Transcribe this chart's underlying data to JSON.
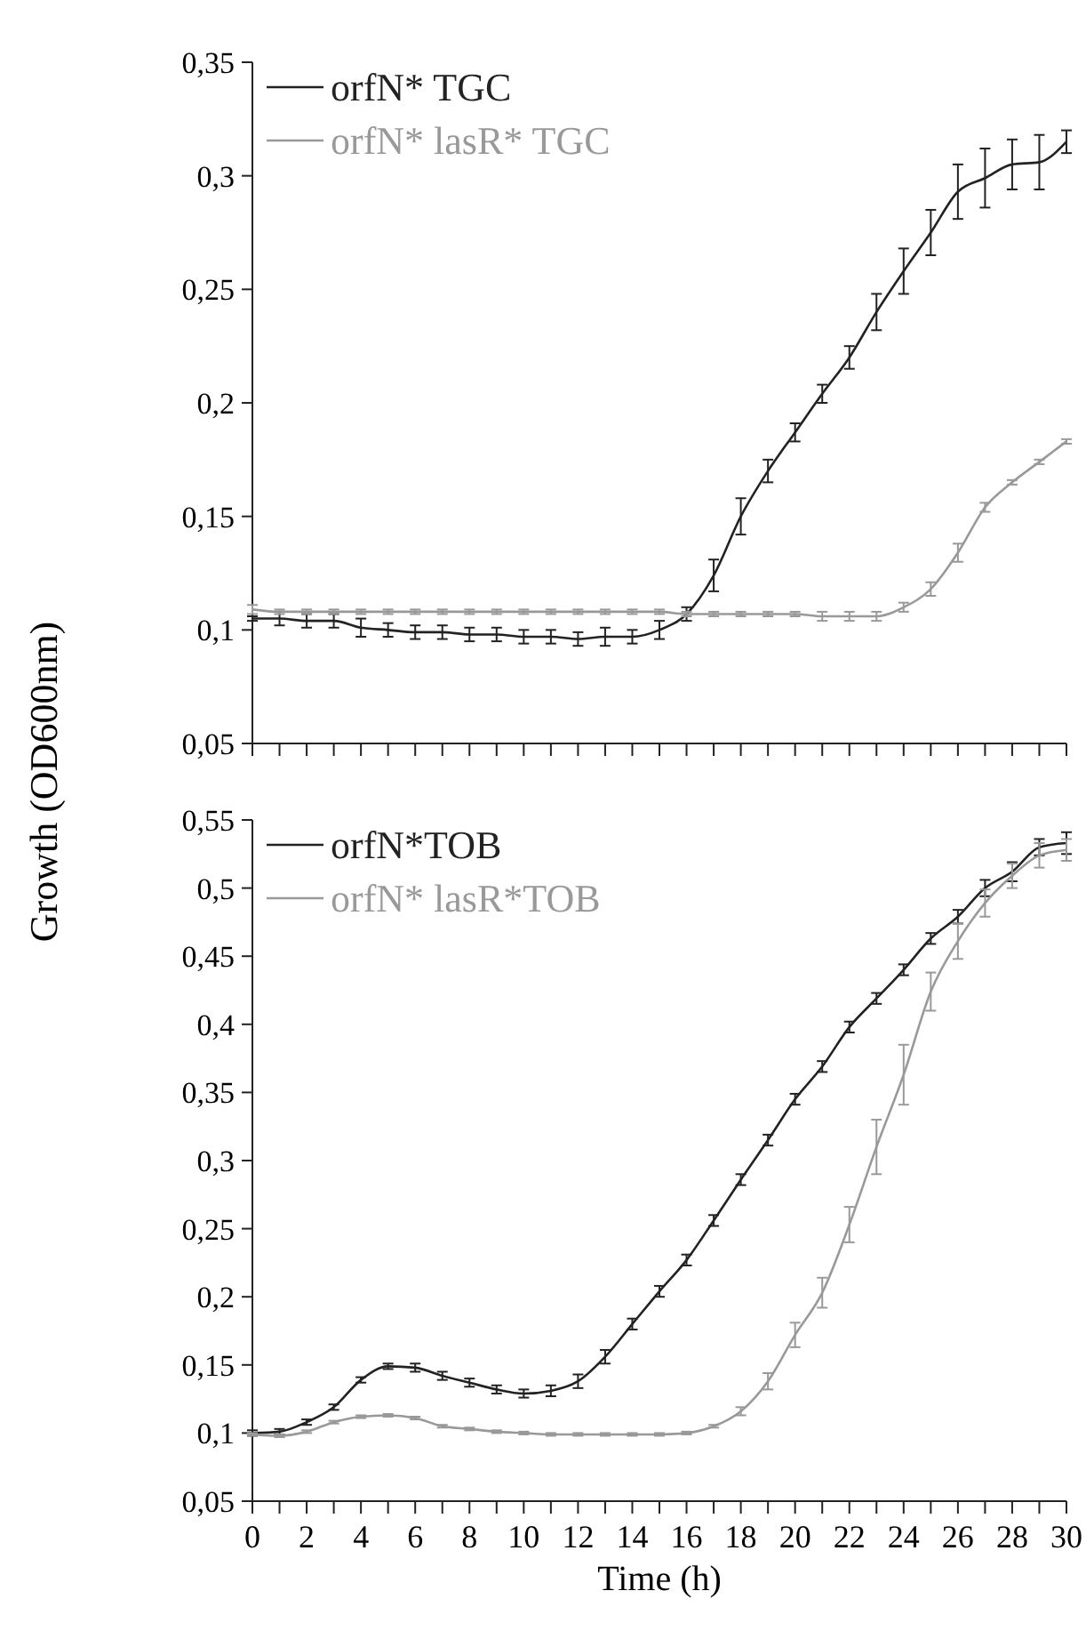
{
  "chart_data": [
    {
      "type": "line",
      "ylabel": "Growth (OD600nm)",
      "x": [
        0,
        1,
        2,
        3,
        4,
        5,
        6,
        7,
        8,
        9,
        10,
        11,
        12,
        13,
        14,
        15,
        16,
        17,
        18,
        19,
        20,
        21,
        22,
        23,
        24,
        25,
        26,
        27,
        28,
        29,
        30
      ],
      "xlim": [
        0,
        30
      ],
      "xticks": [
        {
          "value": 0,
          "label": null
        },
        {
          "value": 1,
          "label": null
        },
        {
          "value": 2,
          "label": null
        },
        {
          "value": 3,
          "label": null
        },
        {
          "value": 4,
          "label": null
        },
        {
          "value": 5,
          "label": null
        },
        {
          "value": 6,
          "label": null
        },
        {
          "value": 7,
          "label": null
        },
        {
          "value": 8,
          "label": null
        },
        {
          "value": 9,
          "label": null
        },
        {
          "value": 10,
          "label": null
        },
        {
          "value": 11,
          "label": null
        },
        {
          "value": 12,
          "label": null
        },
        {
          "value": 13,
          "label": null
        },
        {
          "value": 14,
          "label": null
        },
        {
          "value": 15,
          "label": null
        },
        {
          "value": 16,
          "label": null
        },
        {
          "value": 17,
          "label": null
        },
        {
          "value": 18,
          "label": null
        },
        {
          "value": 19,
          "label": null
        },
        {
          "value": 20,
          "label": null
        },
        {
          "value": 21,
          "label": null
        },
        {
          "value": 22,
          "label": null
        },
        {
          "value": 23,
          "label": null
        },
        {
          "value": 24,
          "label": null
        },
        {
          "value": 25,
          "label": null
        },
        {
          "value": 26,
          "label": null
        },
        {
          "value": 27,
          "label": null
        },
        {
          "value": 28,
          "label": null
        },
        {
          "value": 29,
          "label": null
        },
        {
          "value": 30,
          "label": null
        }
      ],
      "ylim": [
        0.05,
        0.35
      ],
      "yticks": [
        {
          "value": 0.05,
          "label": "0,05"
        },
        {
          "value": 0.1,
          "label": "0,1"
        },
        {
          "value": 0.15,
          "label": "0,15"
        },
        {
          "value": 0.2,
          "label": "0,2"
        },
        {
          "value": 0.25,
          "label": "0,25"
        },
        {
          "value": 0.3,
          "label": "0,3"
        },
        {
          "value": 0.35,
          "label": "0,35"
        }
      ],
      "tick_labels": "y",
      "legend": "top left",
      "marker": "none",
      "line_style": "solid",
      "grid": false,
      "series": [
        {
          "name": "orfN* TGC",
          "color": "#222222",
          "values": [
            0.105,
            0.105,
            0.104,
            0.104,
            0.101,
            0.1,
            0.099,
            0.099,
            0.098,
            0.098,
            0.097,
            0.097,
            0.096,
            0.097,
            0.097,
            0.1,
            0.107,
            0.124,
            0.15,
            0.17,
            0.187,
            0.204,
            0.22,
            0.24,
            0.258,
            0.275,
            0.293,
            0.299,
            0.305,
            0.306,
            0.315
          ],
          "errors": [
            0.001,
            0.003,
            0.003,
            0.003,
            0.004,
            0.003,
            0.003,
            0.003,
            0.003,
            0.003,
            0.003,
            0.003,
            0.003,
            0.004,
            0.003,
            0.004,
            0.003,
            0.007,
            0.008,
            0.005,
            0.004,
            0.004,
            0.005,
            0.008,
            0.01,
            0.01,
            0.012,
            0.013,
            0.011,
            0.012,
            0.005
          ]
        },
        {
          "name": "orfN* lasR* TGC",
          "color": "#999999",
          "values": [
            0.109,
            0.108,
            0.108,
            0.108,
            0.108,
            0.108,
            0.108,
            0.108,
            0.108,
            0.108,
            0.108,
            0.108,
            0.108,
            0.108,
            0.108,
            0.108,
            0.107,
            0.107,
            0.107,
            0.107,
            0.107,
            0.106,
            0.106,
            0.106,
            0.11,
            0.118,
            0.134,
            0.154,
            0.165,
            0.174,
            0.183
          ],
          "errors": [
            0.002,
            0.001,
            0.001,
            0.001,
            0.001,
            0.001,
            0.001,
            0.001,
            0.001,
            0.001,
            0.001,
            0.001,
            0.001,
            0.001,
            0.001,
            0.001,
            0.001,
            0.001,
            0.001,
            0.001,
            0.001,
            0.002,
            0.002,
            0.002,
            0.002,
            0.003,
            0.004,
            0.002,
            0.001,
            0.001,
            0.001
          ]
        }
      ]
    },
    {
      "type": "line",
      "xlabel": "Time (h)",
      "x": [
        0,
        1,
        2,
        3,
        4,
        5,
        6,
        7,
        8,
        9,
        10,
        11,
        12,
        13,
        14,
        15,
        16,
        17,
        18,
        19,
        20,
        21,
        22,
        23,
        24,
        25,
        26,
        27,
        28,
        29,
        30
      ],
      "xlim": [
        0,
        30
      ],
      "xticks": [
        0,
        {
          "value": 1,
          "label": null
        },
        2,
        {
          "value": 3,
          "label": null
        },
        4,
        {
          "value": 5,
          "label": null
        },
        6,
        {
          "value": 7,
          "label": null
        },
        8,
        {
          "value": 9,
          "label": null
        },
        10,
        {
          "value": 11,
          "label": null
        },
        12,
        {
          "value": 13,
          "label": null
        },
        14,
        {
          "value": 15,
          "label": null
        },
        16,
        {
          "value": 17,
          "label": null
        },
        18,
        {
          "value": 19,
          "label": null
        },
        20,
        {
          "value": 21,
          "label": null
        },
        22,
        {
          "value": 23,
          "label": null
        },
        24,
        {
          "value": 25,
          "label": null
        },
        26,
        {
          "value": 27,
          "label": null
        },
        28,
        {
          "value": 29,
          "label": null
        },
        30
      ],
      "ylim": [
        0.05,
        0.55
      ],
      "yticks": [
        {
          "value": 0.05,
          "label": "0,05"
        },
        {
          "value": 0.1,
          "label": "0,1"
        },
        {
          "value": 0.15,
          "label": "0,15"
        },
        {
          "value": 0.2,
          "label": "0,2"
        },
        {
          "value": 0.25,
          "label": "0,25"
        },
        {
          "value": 0.3,
          "label": "0,3"
        },
        {
          "value": 0.35,
          "label": "0,35"
        },
        {
          "value": 0.4,
          "label": "0,4"
        },
        {
          "value": 0.45,
          "label": "0,45"
        },
        {
          "value": 0.5,
          "label": "0,5"
        },
        {
          "value": 0.55,
          "label": "0,55"
        }
      ],
      "legend": "top left",
      "marker": "none",
      "line_style": "solid",
      "grid": false,
      "series": [
        {
          "name": "orfN*TOB",
          "color": "#222222",
          "values": [
            0.1,
            0.101,
            0.108,
            0.119,
            0.139,
            0.149,
            0.148,
            0.142,
            0.137,
            0.132,
            0.129,
            0.131,
            0.138,
            0.156,
            0.18,
            0.204,
            0.227,
            0.256,
            0.286,
            0.315,
            0.345,
            0.369,
            0.398,
            0.419,
            0.44,
            0.463,
            0.479,
            0.5,
            0.512,
            0.53,
            0.533
          ],
          "errors": [
            0.002,
            0.002,
            0.002,
            0.002,
            0.002,
            0.002,
            0.003,
            0.003,
            0.003,
            0.003,
            0.003,
            0.004,
            0.005,
            0.005,
            0.004,
            0.004,
            0.004,
            0.004,
            0.004,
            0.004,
            0.004,
            0.004,
            0.004,
            0.004,
            0.004,
            0.004,
            0.005,
            0.006,
            0.007,
            0.006,
            0.008
          ]
        },
        {
          "name": "orfN* lasR*TOB",
          "color": "#999999",
          "values": [
            0.099,
            0.098,
            0.101,
            0.108,
            0.112,
            0.113,
            0.111,
            0.105,
            0.103,
            0.101,
            0.1,
            0.099,
            0.099,
            0.099,
            0.099,
            0.099,
            0.1,
            0.105,
            0.116,
            0.138,
            0.172,
            0.203,
            0.253,
            0.31,
            0.363,
            0.424,
            0.461,
            0.489,
            0.509,
            0.524,
            0.528
          ],
          "errors": [
            0.001,
            0.001,
            0.001,
            0.001,
            0.001,
            0.001,
            0.001,
            0.001,
            0.001,
            0.001,
            0.001,
            0.001,
            0.001,
            0.001,
            0.001,
            0.001,
            0.001,
            0.001,
            0.003,
            0.006,
            0.009,
            0.011,
            0.013,
            0.02,
            0.022,
            0.014,
            0.013,
            0.01,
            0.009,
            0.009,
            0.008
          ]
        }
      ]
    }
  ]
}
